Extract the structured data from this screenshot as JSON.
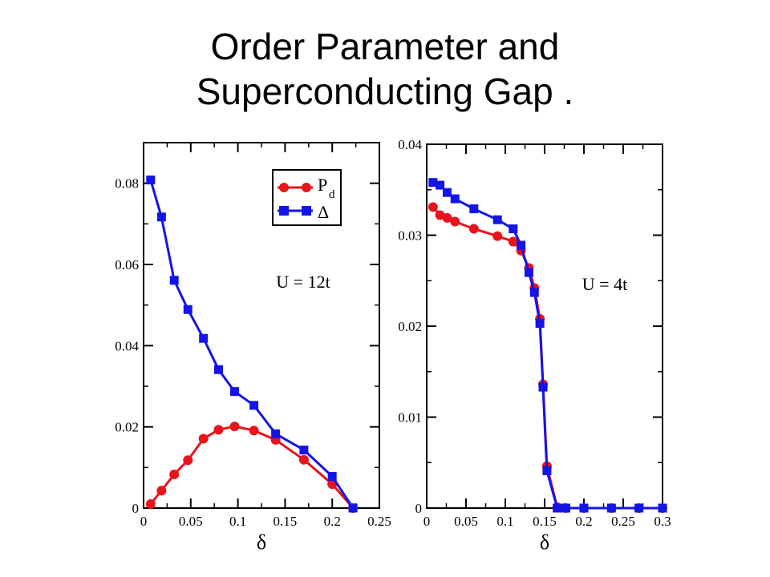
{
  "slide": {
    "title_line1": "Order Parameter and",
    "title_line2": "Superconducting  Gap ."
  },
  "colors": {
    "pd": "#e8141c",
    "delta": "#1414e8"
  },
  "chart_data": [
    {
      "type": "line",
      "xlabel": "δ",
      "ylabel": "",
      "xlim": [
        0,
        0.25
      ],
      "ylim": [
        0,
        0.09
      ],
      "xticks": [
        "0",
        "0.05",
        "0.1",
        "0.15",
        "0.2",
        "0.25"
      ],
      "yticks": [
        "0",
        "0.02",
        "0.04",
        "0.06",
        "0.08"
      ],
      "xtick_values": [
        0,
        0.05,
        0.1,
        0.15,
        0.2,
        0.25
      ],
      "ytick_values": [
        0,
        0.02,
        0.04,
        0.06,
        0.08
      ],
      "annotation": "U = 12t",
      "legend": {
        "placement": "top-right",
        "entries": [
          "P",
          "Δ"
        ],
        "pd_subscript": "d"
      },
      "series": [
        {
          "name": "P_d",
          "marker": "circle",
          "x": [
            0.0075,
            0.019,
            0.0325,
            0.047,
            0.0635,
            0.0795,
            0.0965,
            0.117,
            0.14,
            0.17,
            0.2,
            0.222
          ],
          "y": [
            0.001,
            0.0043,
            0.0083,
            0.0118,
            0.0171,
            0.0193,
            0.0201,
            0.0191,
            0.0168,
            0.0119,
            0.0059,
            0.0
          ]
        },
        {
          "name": "Δ",
          "marker": "square",
          "x": [
            0.0075,
            0.019,
            0.0325,
            0.047,
            0.0635,
            0.0795,
            0.0965,
            0.117,
            0.14,
            0.17,
            0.2,
            0.222
          ],
          "y": [
            0.0808,
            0.0717,
            0.0561,
            0.0489,
            0.0418,
            0.0341,
            0.0287,
            0.0253,
            0.0183,
            0.0143,
            0.0078,
            0.0
          ]
        }
      ]
    },
    {
      "type": "line",
      "xlabel": "δ",
      "ylabel": "",
      "xlim": [
        0,
        0.3
      ],
      "ylim": [
        0,
        0.04
      ],
      "xticks": [
        "0",
        "0.05",
        "0.1",
        "0.15",
        "0.2",
        "0.25",
        "0.3"
      ],
      "yticks": [
        "0",
        "0.01",
        "0.02",
        "0.03",
        "0.04"
      ],
      "xtick_values": [
        0,
        0.05,
        0.1,
        0.15,
        0.2,
        0.25,
        0.3
      ],
      "ytick_values": [
        0,
        0.01,
        0.02,
        0.03,
        0.04
      ],
      "annotation": "U = 4t",
      "series": [
        {
          "name": "P_d",
          "marker": "circle",
          "x": [
            0.008,
            0.017,
            0.026,
            0.036,
            0.06,
            0.09,
            0.11,
            0.12,
            0.13,
            0.137,
            0.144,
            0.148,
            0.153,
            0.166,
            0.177,
            0.2,
            0.235,
            0.27,
            0.3
          ],
          "y": [
            0.0331,
            0.0322,
            0.0319,
            0.0315,
            0.0307,
            0.0299,
            0.0293,
            0.0283,
            0.0264,
            0.0242,
            0.0208,
            0.0136,
            0.0046,
            0.0001,
            0.0,
            0.0,
            0.0,
            0.0,
            0.0
          ]
        },
        {
          "name": "Δ",
          "marker": "square",
          "x": [
            0.008,
            0.017,
            0.026,
            0.036,
            0.06,
            0.09,
            0.11,
            0.12,
            0.13,
            0.137,
            0.144,
            0.148,
            0.153,
            0.166,
            0.177,
            0.2,
            0.235,
            0.27,
            0.3
          ],
          "y": [
            0.0358,
            0.0355,
            0.0347,
            0.034,
            0.0329,
            0.0317,
            0.0307,
            0.0289,
            0.0259,
            0.0237,
            0.0203,
            0.0133,
            0.0041,
            0.0,
            0.0,
            0.0,
            0.0,
            0.0,
            0.0
          ]
        }
      ]
    }
  ]
}
